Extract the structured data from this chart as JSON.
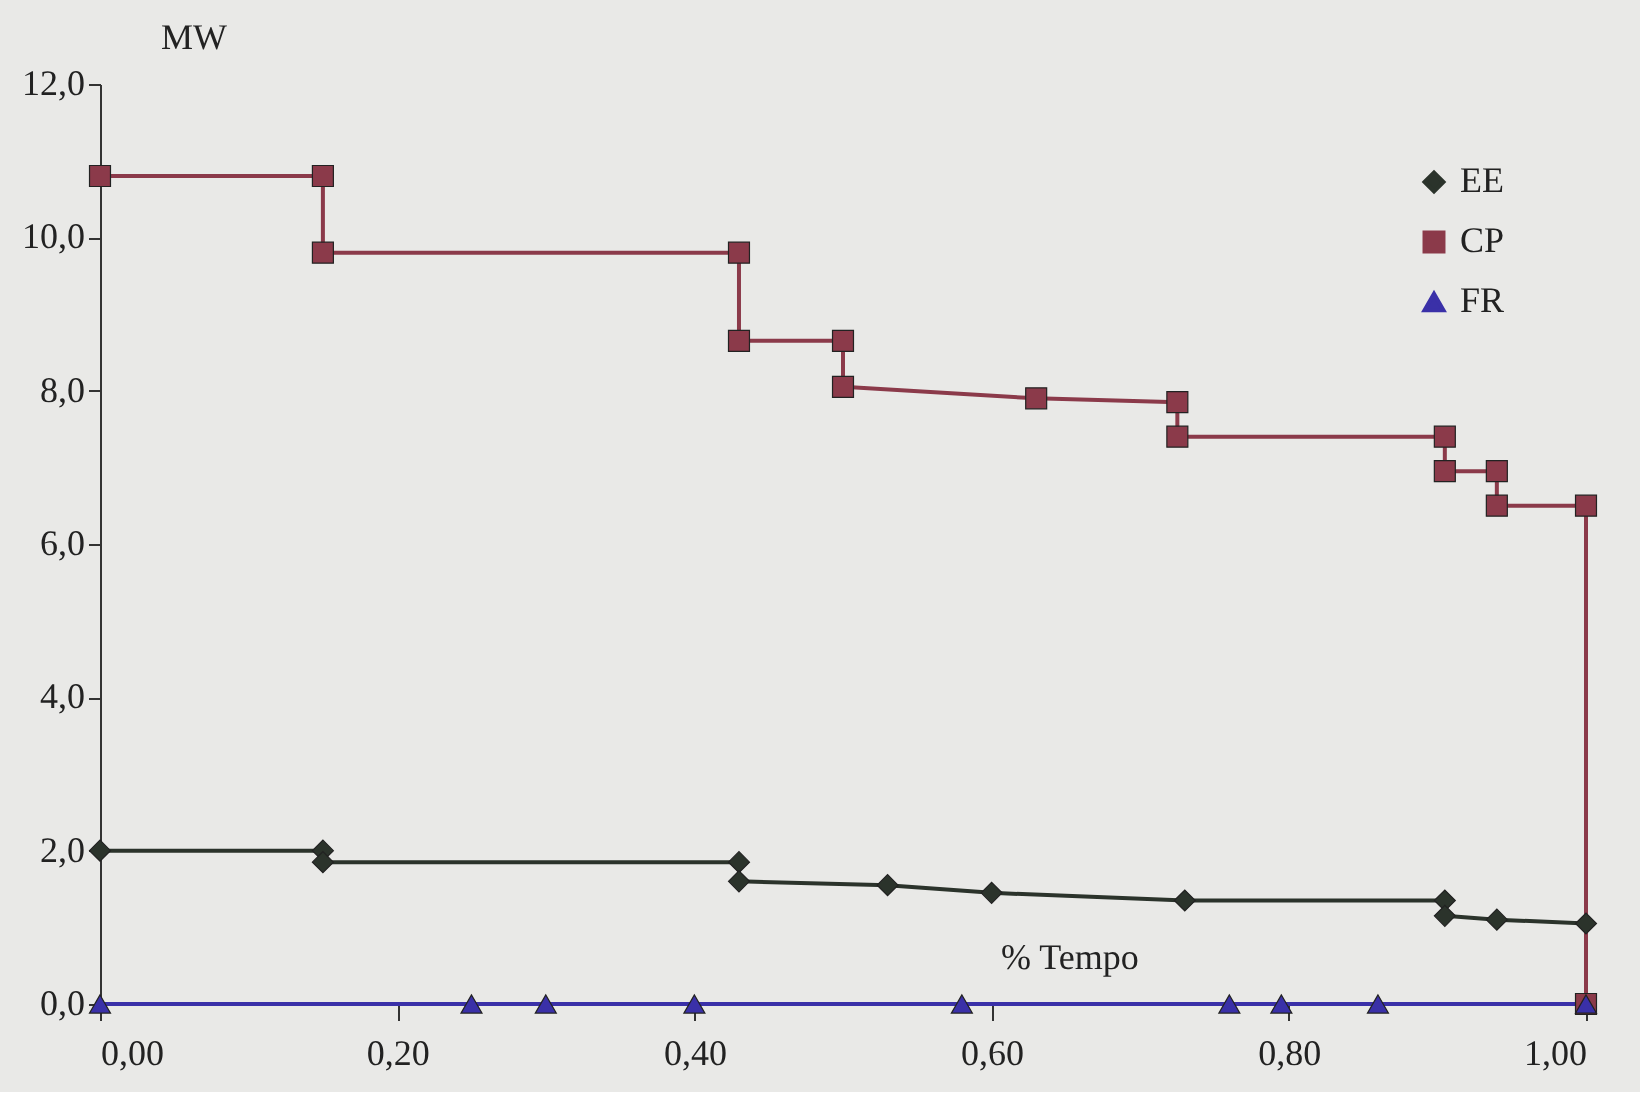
{
  "chart_data": {
    "type": "line",
    "xlabel": "% Tempo",
    "ylabel": "MW",
    "series": [
      {
        "name": "EE",
        "color": "#2b332b",
        "marker": "diamond",
        "x": [
          0,
          0.15,
          0.15,
          0.43,
          0.43,
          0.53,
          0.6,
          0.73,
          0.905,
          0.905,
          0.94,
          1.0
        ],
        "values": [
          2.0,
          2.0,
          1.85,
          1.85,
          1.6,
          1.55,
          1.45,
          1.35,
          1.35,
          1.15,
          1.1,
          1.05
        ]
      },
      {
        "name": "CP",
        "color": "#8b3a4a",
        "marker": "square",
        "x": [
          0,
          0.15,
          0.15,
          0.43,
          0.43,
          0.5,
          0.5,
          0.63,
          0.725,
          0.725,
          0.905,
          0.905,
          0.94,
          0.94,
          1.0,
          1.0
        ],
        "values": [
          10.8,
          10.8,
          9.8,
          9.8,
          8.65,
          8.65,
          8.05,
          7.9,
          7.85,
          7.4,
          7.4,
          6.95,
          6.95,
          6.5,
          6.5,
          0
        ]
      },
      {
        "name": "FR",
        "color": "#3a30a8",
        "marker": "triangle",
        "x": [
          0,
          0.25,
          0.3,
          0.4,
          0.58,
          0.76,
          0.795,
          0.86,
          1.0
        ],
        "values": [
          0,
          0,
          0,
          0,
          0,
          0,
          0,
          0,
          0
        ]
      }
    ],
    "xlim": [
      0,
      1
    ],
    "ylim": [
      0,
      12
    ],
    "xticks": [
      {
        "value": 0,
        "label": "0,00"
      },
      {
        "value": 0.2,
        "label": "0,20"
      },
      {
        "value": 0.4,
        "label": "0,40"
      },
      {
        "value": 0.6,
        "label": "0,60"
      },
      {
        "value": 0.8,
        "label": "0,80"
      },
      {
        "value": 1,
        "label": "1,00"
      }
    ],
    "yticks": [
      {
        "value": 0,
        "label": "0,0"
      },
      {
        "value": 2,
        "label": "2,0"
      },
      {
        "value": 4,
        "label": "4,0"
      },
      {
        "value": 6,
        "label": "6,0"
      },
      {
        "value": 8,
        "label": "8,0"
      },
      {
        "value": 10,
        "label": "10,0"
      },
      {
        "value": 12,
        "label": "12,0"
      }
    ],
    "grid": false,
    "legend": "top right",
    "line_style": "solid"
  }
}
